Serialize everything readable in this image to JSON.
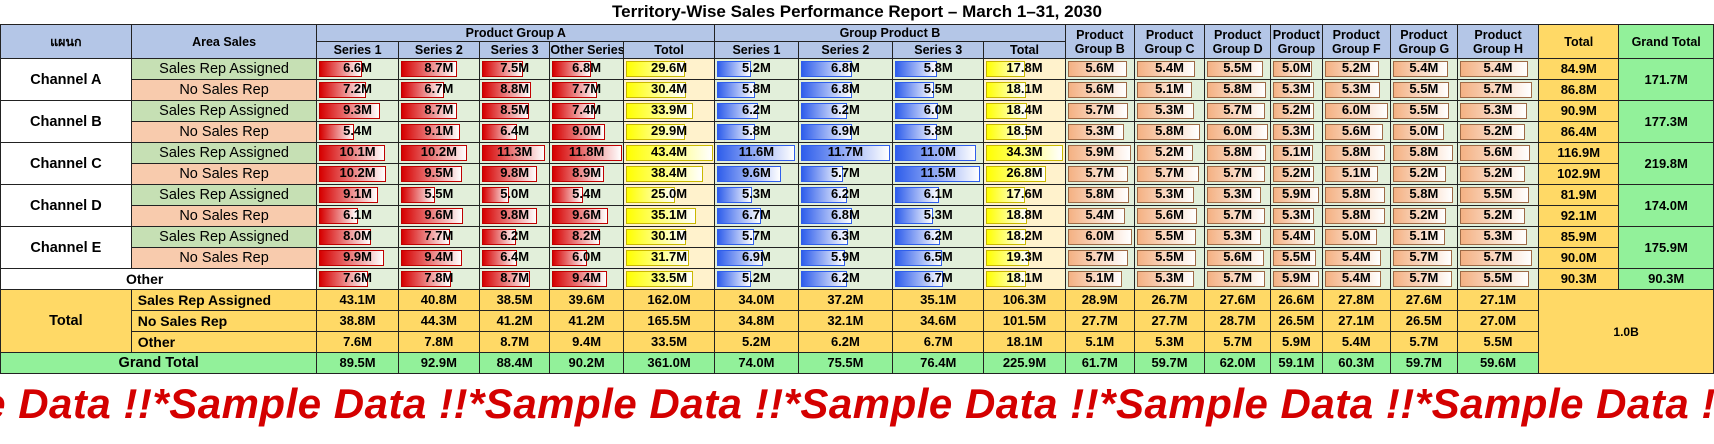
{
  "title": "Territory-Wise Sales Performance Report – March 1–31, 2030",
  "headers": {
    "dept": "แผนก",
    "area": "Area Sales",
    "groupA": "Product Group A",
    "groupB": "Group Product B",
    "productB": "Product Group B",
    "productC": "Product Group C",
    "productD": "Product Group D",
    "productE": "Product Group",
    "productF": "Product Group F",
    "productG": "Product Group G",
    "productH": "Product Group H",
    "total": "Total",
    "grandTotal": "Grand Total",
    "series1": "Series 1",
    "series2": "Series 2",
    "series3": "Series 3",
    "otherSeries": "Other Series",
    "totol": "Totol",
    "totalB": "Total"
  },
  "labels": {
    "salesRepAssigned": "Sales Rep Assigned",
    "noSalesRep": "No Sales Rep",
    "other": "Other",
    "total": "Total",
    "grandTotal": "Grand Total"
  },
  "channels": [
    {
      "name": "Channel A",
      "grand": "171.7M",
      "rows": [
        {
          "a": [
            "6.6M",
            "8.7M",
            "7.5M",
            "6.8M",
            "29.6M"
          ],
          "b": [
            "5.2M",
            "6.8M",
            "5.8M",
            "17.8M"
          ],
          "p": [
            "5.6M",
            "5.4M",
            "5.5M",
            "5.0M",
            "5.2M",
            "5.4M",
            "5.4M"
          ],
          "total": "84.9M"
        },
        {
          "a": [
            "7.2M",
            "6.7M",
            "8.8M",
            "7.7M",
            "30.4M"
          ],
          "b": [
            "5.8M",
            "6.8M",
            "5.5M",
            "18.1M"
          ],
          "p": [
            "5.6M",
            "5.1M",
            "5.8M",
            "5.3M",
            "5.3M",
            "5.5M",
            "5.7M"
          ],
          "total": "86.8M"
        }
      ]
    },
    {
      "name": "Channel B",
      "grand": "177.3M",
      "rows": [
        {
          "a": [
            "9.3M",
            "8.7M",
            "8.5M",
            "7.4M",
            "33.9M"
          ],
          "b": [
            "6.2M",
            "6.2M",
            "6.0M",
            "18.4M"
          ],
          "p": [
            "5.7M",
            "5.3M",
            "5.7M",
            "5.2M",
            "6.0M",
            "5.5M",
            "5.3M"
          ],
          "total": "90.9M"
        },
        {
          "a": [
            "5.4M",
            "9.1M",
            "6.4M",
            "9.0M",
            "29.9M"
          ],
          "b": [
            "5.8M",
            "6.9M",
            "5.8M",
            "18.5M"
          ],
          "p": [
            "5.3M",
            "5.8M",
            "6.0M",
            "5.3M",
            "5.6M",
            "5.0M",
            "5.2M"
          ],
          "total": "86.4M"
        }
      ]
    },
    {
      "name": "Channel C",
      "grand": "219.8M",
      "rows": [
        {
          "a": [
            "10.1M",
            "10.2M",
            "11.3M",
            "11.8M",
            "43.4M"
          ],
          "b": [
            "11.6M",
            "11.7M",
            "11.0M",
            "34.3M"
          ],
          "p": [
            "5.9M",
            "5.2M",
            "5.8M",
            "5.1M",
            "5.8M",
            "5.8M",
            "5.6M"
          ],
          "total": "116.9M"
        },
        {
          "a": [
            "10.2M",
            "9.5M",
            "9.8M",
            "8.9M",
            "38.4M"
          ],
          "b": [
            "9.6M",
            "5.7M",
            "11.5M",
            "26.8M"
          ],
          "p": [
            "5.7M",
            "5.7M",
            "5.7M",
            "5.2M",
            "5.1M",
            "5.2M",
            "5.2M"
          ],
          "total": "102.9M"
        }
      ]
    },
    {
      "name": "Channel D",
      "grand": "174.0M",
      "rows": [
        {
          "a": [
            "9.1M",
            "5.5M",
            "5.0M",
            "5.4M",
            "25.0M"
          ],
          "b": [
            "5.3M",
            "6.2M",
            "6.1M",
            "17.6M"
          ],
          "p": [
            "5.8M",
            "5.3M",
            "5.3M",
            "5.9M",
            "5.8M",
            "5.8M",
            "5.5M"
          ],
          "total": "81.9M"
        },
        {
          "a": [
            "6.1M",
            "9.6M",
            "9.8M",
            "9.6M",
            "35.1M"
          ],
          "b": [
            "6.7M",
            "6.8M",
            "5.3M",
            "18.8M"
          ],
          "p": [
            "5.4M",
            "5.6M",
            "5.7M",
            "5.3M",
            "5.8M",
            "5.2M",
            "5.2M"
          ],
          "total": "92.1M"
        }
      ]
    },
    {
      "name": "Channel E",
      "grand": "175.9M",
      "rows": [
        {
          "a": [
            "8.0M",
            "7.7M",
            "6.2M",
            "8.2M",
            "30.1M"
          ],
          "b": [
            "5.7M",
            "6.3M",
            "6.2M",
            "18.2M"
          ],
          "p": [
            "6.0M",
            "5.5M",
            "5.3M",
            "5.4M",
            "5.0M",
            "5.1M",
            "5.3M"
          ],
          "total": "85.9M"
        },
        {
          "a": [
            "9.9M",
            "9.4M",
            "6.4M",
            "6.0M",
            "31.7M"
          ],
          "b": [
            "6.9M",
            "5.9M",
            "6.5M",
            "19.3M"
          ],
          "p": [
            "5.7M",
            "5.5M",
            "5.6M",
            "5.5M",
            "5.4M",
            "5.7M",
            "5.7M"
          ],
          "total": "90.0M"
        }
      ]
    }
  ],
  "otherRow": {
    "a": [
      "7.6M",
      "7.8M",
      "8.7M",
      "9.4M",
      "33.5M"
    ],
    "b": [
      "5.2M",
      "6.2M",
      "6.7M",
      "18.1M"
    ],
    "p": [
      "5.1M",
      "5.3M",
      "5.7M",
      "5.9M",
      "5.4M",
      "5.7M",
      "5.5M"
    ],
    "total": "90.3M",
    "grand": "90.3M"
  },
  "totals": [
    {
      "label": "Sales Rep Assigned",
      "v": [
        "43.1M",
        "40.8M",
        "38.5M",
        "39.6M",
        "162.0M",
        "34.0M",
        "37.2M",
        "35.1M",
        "106.3M",
        "28.9M",
        "26.7M",
        "27.6M",
        "26.6M",
        "27.8M",
        "27.6M",
        "27.1M"
      ]
    },
    {
      "label": "No Sales Rep",
      "v": [
        "38.8M",
        "44.3M",
        "41.2M",
        "41.2M",
        "165.5M",
        "34.8M",
        "32.1M",
        "34.6M",
        "101.5M",
        "27.7M",
        "27.7M",
        "28.7M",
        "26.5M",
        "27.1M",
        "26.5M",
        "27.0M"
      ]
    },
    {
      "label": "Other",
      "v": [
        "7.6M",
        "7.8M",
        "8.7M",
        "9.4M",
        "33.5M",
        "5.2M",
        "6.2M",
        "6.7M",
        "18.1M",
        "5.1M",
        "5.3M",
        "5.7M",
        "5.9M",
        "5.4M",
        "5.7M",
        "5.5M"
      ]
    }
  ],
  "grandTotalRow": [
    "89.5M",
    "92.9M",
    "88.4M",
    "90.2M",
    "361.0M",
    "74.0M",
    "75.5M",
    "76.4M",
    "225.9M",
    "61.7M",
    "59.7M",
    "62.0M",
    "59.1M",
    "60.3M",
    "59.7M",
    "59.6M"
  ],
  "overall": "1.0B",
  "banner": "le Data !!*Sample Data !!*Sample Data !!*Sample Data !!*Sample Data !!*Sample Data !!*Sample Data"
}
